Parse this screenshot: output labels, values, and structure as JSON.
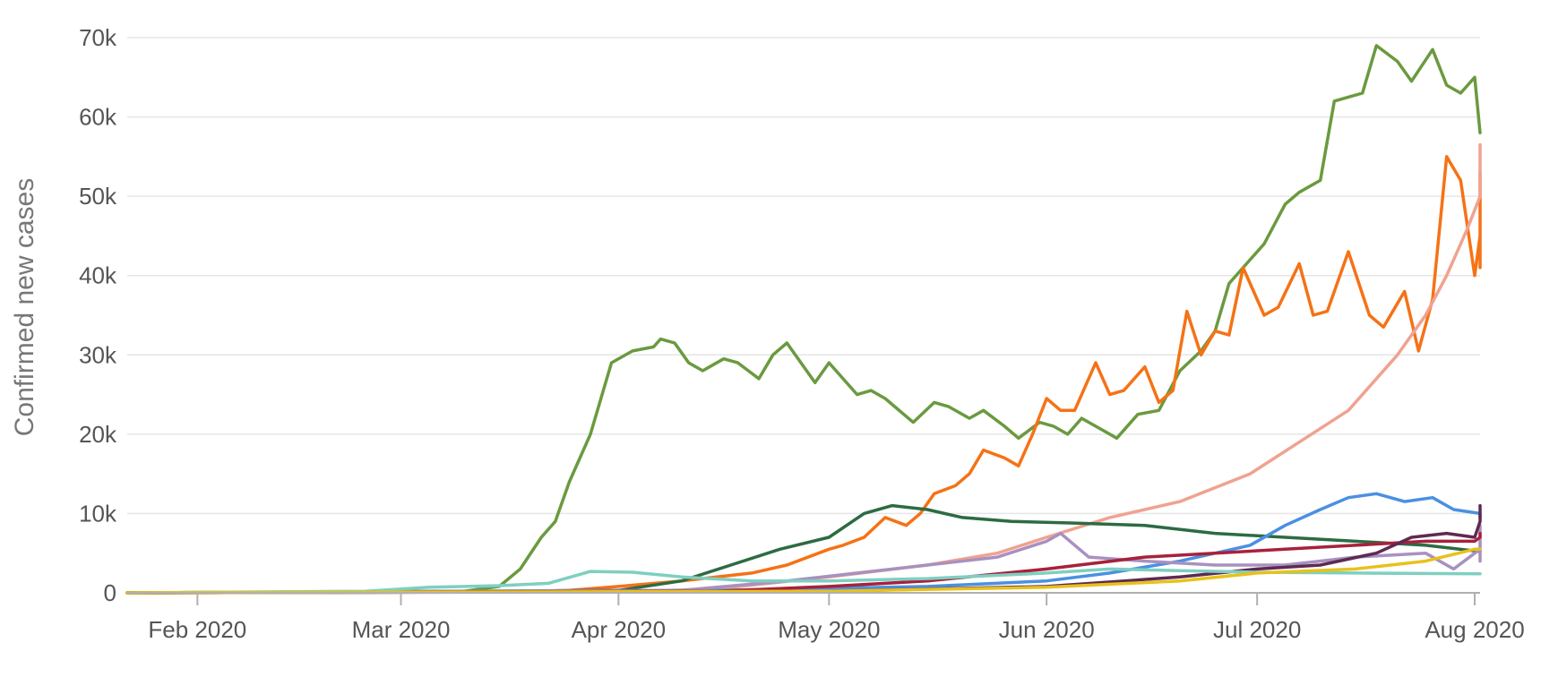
{
  "chart_data": {
    "type": "line",
    "ylabel": "Confirmed new cases",
    "x_type": "date",
    "xlim": [
      "2020-01-22",
      "2020-08-01"
    ],
    "ylim": [
      0,
      70000
    ],
    "y_ticks": [
      {
        "value": 0,
        "label": "0"
      },
      {
        "value": 10000,
        "label": "10k"
      },
      {
        "value": 20000,
        "label": "20k"
      },
      {
        "value": 30000,
        "label": "30k"
      },
      {
        "value": 40000,
        "label": "40k"
      },
      {
        "value": 50000,
        "label": "50k"
      },
      {
        "value": 60000,
        "label": "60k"
      },
      {
        "value": 70000,
        "label": "70k"
      }
    ],
    "x_ticks": [
      {
        "value": "2020-02-01",
        "label": "Feb 2020"
      },
      {
        "value": "2020-03-01",
        "label": "Mar 2020"
      },
      {
        "value": "2020-04-01",
        "label": "Apr 2020"
      },
      {
        "value": "2020-05-01",
        "label": "May 2020"
      },
      {
        "value": "2020-06-01",
        "label": "Jun 2020"
      },
      {
        "value": "2020-07-01",
        "label": "Jul 2020"
      },
      {
        "value": "2020-08-01",
        "label": "Aug 2020"
      }
    ],
    "grid": "horizontal",
    "legend": "none",
    "series": [
      {
        "color": "#6a9a3f",
        "points": [
          [
            "2020-01-22",
            0
          ],
          [
            "2020-03-10",
            200
          ],
          [
            "2020-03-15",
            800
          ],
          [
            "2020-03-18",
            3000
          ],
          [
            "2020-03-21",
            7000
          ],
          [
            "2020-03-23",
            9000
          ],
          [
            "2020-03-25",
            14000
          ],
          [
            "2020-03-28",
            20000
          ],
          [
            "2020-03-31",
            29000
          ],
          [
            "2020-04-03",
            30500
          ],
          [
            "2020-04-06",
            31000
          ],
          [
            "2020-04-07",
            32000
          ],
          [
            "2020-04-09",
            31500
          ],
          [
            "2020-04-11",
            29000
          ],
          [
            "2020-04-13",
            28000
          ],
          [
            "2020-04-16",
            29500
          ],
          [
            "2020-04-18",
            29000
          ],
          [
            "2020-04-21",
            27000
          ],
          [
            "2020-04-23",
            30000
          ],
          [
            "2020-04-25",
            31500
          ],
          [
            "2020-04-27",
            29000
          ],
          [
            "2020-04-29",
            26500
          ],
          [
            "2020-05-01",
            29000
          ],
          [
            "2020-05-03",
            27000
          ],
          [
            "2020-05-05",
            25000
          ],
          [
            "2020-05-07",
            25500
          ],
          [
            "2020-05-09",
            24500
          ],
          [
            "2020-05-13",
            21500
          ],
          [
            "2020-05-16",
            24000
          ],
          [
            "2020-05-18",
            23500
          ],
          [
            "2020-05-21",
            22000
          ],
          [
            "2020-05-23",
            23000
          ],
          [
            "2020-05-26",
            21000
          ],
          [
            "2020-05-28",
            19500
          ],
          [
            "2020-05-31",
            21500
          ],
          [
            "2020-06-02",
            21000
          ],
          [
            "2020-06-04",
            20000
          ],
          [
            "2020-06-06",
            22000
          ],
          [
            "2020-06-09",
            20500
          ],
          [
            "2020-06-11",
            19500
          ],
          [
            "2020-06-14",
            22500
          ],
          [
            "2020-06-17",
            23000
          ],
          [
            "2020-06-20",
            28000
          ],
          [
            "2020-06-23",
            30500
          ],
          [
            "2020-06-25",
            33000
          ],
          [
            "2020-06-27",
            39000
          ],
          [
            "2020-06-30",
            42000
          ],
          [
            "2020-07-02",
            44000
          ],
          [
            "2020-07-05",
            49000
          ],
          [
            "2020-07-07",
            50500
          ],
          [
            "2020-07-10",
            52000
          ],
          [
            "2020-07-12",
            62000
          ],
          [
            "2020-07-14",
            62500
          ],
          [
            "2020-07-16",
            63000
          ],
          [
            "2020-07-18",
            69000
          ],
          [
            "2020-07-21",
            67000
          ],
          [
            "2020-07-23",
            64500
          ],
          [
            "2020-07-26",
            68500
          ],
          [
            "2020-07-28",
            64000
          ],
          [
            "2020-07-30",
            63000
          ],
          [
            "2020-08-01",
            65000
          ],
          [
            "2020-08-03",
            58000
          ]
        ]
      },
      {
        "color": "#f57216",
        "points": [
          [
            "2020-01-22",
            0
          ],
          [
            "2020-03-15",
            100
          ],
          [
            "2020-03-25",
            300
          ],
          [
            "2020-04-01",
            800
          ],
          [
            "2020-04-10",
            1500
          ],
          [
            "2020-04-20",
            2500
          ],
          [
            "2020-04-25",
            3500
          ],
          [
            "2020-05-01",
            5500
          ],
          [
            "2020-05-03",
            6000
          ],
          [
            "2020-05-06",
            7000
          ],
          [
            "2020-05-09",
            9500
          ],
          [
            "2020-05-12",
            8500
          ],
          [
            "2020-05-14",
            10000
          ],
          [
            "2020-05-16",
            12500
          ],
          [
            "2020-05-19",
            13500
          ],
          [
            "2020-05-21",
            15000
          ],
          [
            "2020-05-23",
            18000
          ],
          [
            "2020-05-26",
            17000
          ],
          [
            "2020-05-28",
            16000
          ],
          [
            "2020-05-30",
            20000
          ],
          [
            "2020-06-01",
            24500
          ],
          [
            "2020-06-03",
            23000
          ],
          [
            "2020-06-05",
            23000
          ],
          [
            "2020-06-08",
            29000
          ],
          [
            "2020-06-10",
            25000
          ],
          [
            "2020-06-12",
            25500
          ],
          [
            "2020-06-15",
            28500
          ],
          [
            "2020-06-17",
            24000
          ],
          [
            "2020-06-19",
            25500
          ],
          [
            "2020-06-21",
            35500
          ],
          [
            "2020-06-23",
            30000
          ],
          [
            "2020-06-25",
            33000
          ],
          [
            "2020-06-27",
            32500
          ],
          [
            "2020-06-29",
            41000
          ],
          [
            "2020-07-02",
            35000
          ],
          [
            "2020-07-04",
            36000
          ],
          [
            "2020-07-07",
            41500
          ],
          [
            "2020-07-09",
            35000
          ],
          [
            "2020-07-11",
            35500
          ],
          [
            "2020-07-14",
            43000
          ],
          [
            "2020-07-17",
            35000
          ],
          [
            "2020-07-19",
            33500
          ],
          [
            "2020-07-22",
            38000
          ],
          [
            "2020-07-24",
            30500
          ],
          [
            "2020-07-26",
            37000
          ],
          [
            "2020-07-28",
            55000
          ],
          [
            "2020-07-30",
            52000
          ],
          [
            "2020-08-01",
            40000
          ],
          [
            "2020-08-03",
            45000
          ],
          [
            "2020-08-05",
            53000
          ],
          [
            "2020-08-07",
            48000
          ],
          [
            "2020-08-09",
            41000
          ]
        ]
      },
      {
        "color": "#f0a290",
        "points": [
          [
            "2020-01-22",
            0
          ],
          [
            "2020-04-01",
            100
          ],
          [
            "2020-04-15",
            500
          ],
          [
            "2020-05-01",
            2000
          ],
          [
            "2020-05-15",
            3500
          ],
          [
            "2020-05-25",
            5000
          ],
          [
            "2020-06-01",
            7000
          ],
          [
            "2020-06-10",
            9500
          ],
          [
            "2020-06-20",
            11500
          ],
          [
            "2020-06-30",
            15000
          ],
          [
            "2020-07-07",
            19000
          ],
          [
            "2020-07-14",
            23000
          ],
          [
            "2020-07-21",
            30000
          ],
          [
            "2020-07-25",
            35000
          ],
          [
            "2020-07-28",
            40000
          ],
          [
            "2020-07-31",
            46000
          ],
          [
            "2020-08-03",
            50000
          ],
          [
            "2020-08-06",
            54000
          ],
          [
            "2020-08-09",
            56500
          ]
        ]
      },
      {
        "color": "#2d6b42",
        "points": [
          [
            "2020-01-22",
            0
          ],
          [
            "2020-04-01",
            300
          ],
          [
            "2020-04-10",
            1500
          ],
          [
            "2020-04-17",
            3500
          ],
          [
            "2020-04-24",
            5500
          ],
          [
            "2020-05-01",
            7000
          ],
          [
            "2020-05-06",
            10000
          ],
          [
            "2020-05-10",
            11000
          ],
          [
            "2020-05-15",
            10500
          ],
          [
            "2020-05-20",
            9500
          ],
          [
            "2020-05-27",
            9000
          ],
          [
            "2020-06-05",
            8800
          ],
          [
            "2020-06-15",
            8500
          ],
          [
            "2020-06-25",
            7500
          ],
          [
            "2020-07-05",
            7000
          ],
          [
            "2020-07-15",
            6500
          ],
          [
            "2020-07-25",
            6000
          ],
          [
            "2020-08-09",
            5200
          ]
        ]
      },
      {
        "color": "#4a90e2",
        "points": [
          [
            "2020-01-22",
            0
          ],
          [
            "2020-04-15",
            300
          ],
          [
            "2020-05-15",
            800
          ],
          [
            "2020-06-01",
            1500
          ],
          [
            "2020-06-10",
            2500
          ],
          [
            "2020-06-20",
            4000
          ],
          [
            "2020-06-30",
            6000
          ],
          [
            "2020-07-05",
            8500
          ],
          [
            "2020-07-10",
            10500
          ],
          [
            "2020-07-14",
            12000
          ],
          [
            "2020-07-18",
            12500
          ],
          [
            "2020-07-22",
            11500
          ],
          [
            "2020-07-26",
            12000
          ],
          [
            "2020-07-29",
            10500
          ],
          [
            "2020-08-02",
            10000
          ],
          [
            "2020-08-05",
            9500
          ],
          [
            "2020-08-09",
            10000
          ]
        ]
      },
      {
        "color": "#a891c0",
        "points": [
          [
            "2020-01-22",
            0
          ],
          [
            "2020-04-10",
            300
          ],
          [
            "2020-04-25",
            1500
          ],
          [
            "2020-05-05",
            2500
          ],
          [
            "2020-05-15",
            3500
          ],
          [
            "2020-05-25",
            4500
          ],
          [
            "2020-06-01",
            6500
          ],
          [
            "2020-06-03",
            7500
          ],
          [
            "2020-06-07",
            4500
          ],
          [
            "2020-06-15",
            4000
          ],
          [
            "2020-06-25",
            3500
          ],
          [
            "2020-07-05",
            3500
          ],
          [
            "2020-07-15",
            4500
          ],
          [
            "2020-07-25",
            5000
          ],
          [
            "2020-07-29",
            3000
          ],
          [
            "2020-08-02",
            5500
          ],
          [
            "2020-08-05",
            4000
          ],
          [
            "2020-08-09",
            8500
          ]
        ]
      },
      {
        "color": "#a8213b",
        "points": [
          [
            "2020-01-22",
            0
          ],
          [
            "2020-04-15",
            200
          ],
          [
            "2020-05-01",
            800
          ],
          [
            "2020-05-15",
            1500
          ],
          [
            "2020-06-01",
            3000
          ],
          [
            "2020-06-15",
            4500
          ],
          [
            "2020-06-25",
            5000
          ],
          [
            "2020-07-05",
            5500
          ],
          [
            "2020-07-15",
            6000
          ],
          [
            "2020-07-25",
            6500
          ],
          [
            "2020-08-01",
            6500
          ],
          [
            "2020-08-05",
            7000
          ],
          [
            "2020-08-09",
            7500
          ]
        ]
      },
      {
        "color": "#5e2a52",
        "points": [
          [
            "2020-01-22",
            0
          ],
          [
            "2020-05-01",
            200
          ],
          [
            "2020-06-01",
            800
          ],
          [
            "2020-06-20",
            2000
          ],
          [
            "2020-07-01",
            3000
          ],
          [
            "2020-07-10",
            3500
          ],
          [
            "2020-07-18",
            5000
          ],
          [
            "2020-07-23",
            7000
          ],
          [
            "2020-07-28",
            7500
          ],
          [
            "2020-08-01",
            7000
          ],
          [
            "2020-08-04",
            9000
          ],
          [
            "2020-08-06",
            11000
          ],
          [
            "2020-08-09",
            10500
          ]
        ]
      },
      {
        "color": "#7fcfc1",
        "points": [
          [
            "2020-01-22",
            0
          ],
          [
            "2020-02-25",
            200
          ],
          [
            "2020-03-05",
            700
          ],
          [
            "2020-03-15",
            900
          ],
          [
            "2020-03-22",
            1200
          ],
          [
            "2020-03-28",
            2700
          ],
          [
            "2020-04-03",
            2600
          ],
          [
            "2020-04-10",
            2000
          ],
          [
            "2020-04-20",
            1500
          ],
          [
            "2020-05-01",
            1500
          ],
          [
            "2020-05-15",
            1800
          ],
          [
            "2020-06-01",
            2500
          ],
          [
            "2020-06-10",
            3000
          ],
          [
            "2020-06-20",
            2800
          ],
          [
            "2020-07-01",
            2600
          ],
          [
            "2020-07-15",
            2500
          ],
          [
            "2020-08-09",
            2400
          ]
        ]
      },
      {
        "color": "#e8c11c",
        "points": [
          [
            "2020-01-22",
            0
          ],
          [
            "2020-05-01",
            200
          ],
          [
            "2020-06-01",
            700
          ],
          [
            "2020-06-20",
            1500
          ],
          [
            "2020-07-01",
            2500
          ],
          [
            "2020-07-15",
            3000
          ],
          [
            "2020-07-25",
            4000
          ],
          [
            "2020-08-01",
            5500
          ],
          [
            "2020-08-09",
            5500
          ]
        ]
      }
    ]
  }
}
